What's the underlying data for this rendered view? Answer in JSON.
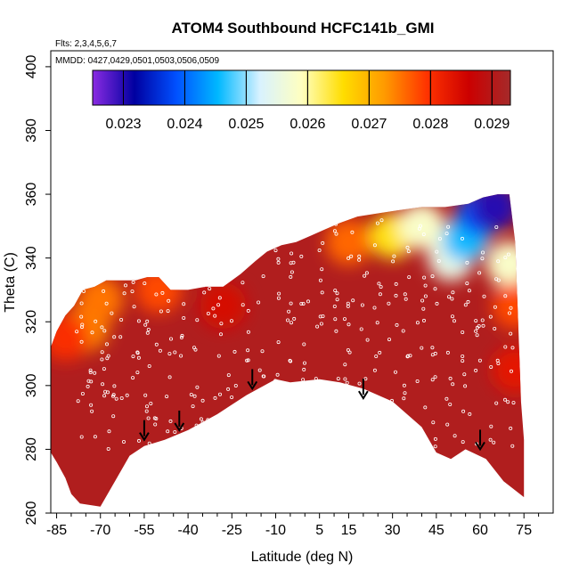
{
  "chart_data": {
    "type": "heatmap",
    "title": "ATOM4 Southbound HCFC141b_GMI",
    "subtitle_lines": [
      "Flts: 2,3,4,5,6,7",
      "MMDD: 0427,0429,0501,0503,0506,0509"
    ],
    "xlabel": "Latitude (deg N)",
    "ylabel": "Theta (C)",
    "xlim": [
      -87,
      85
    ],
    "ylim": [
      260,
      405
    ],
    "x_ticks": [
      -85,
      -70,
      -55,
      -40,
      -25,
      -10,
      5,
      15,
      30,
      45,
      60,
      75
    ],
    "y_ticks": [
      260,
      280,
      300,
      320,
      340,
      360,
      380,
      400
    ],
    "colorbar": {
      "ticks": [
        "0.023",
        "0.024",
        "0.025",
        "0.026",
        "0.027",
        "0.028",
        "0.029"
      ],
      "range": [
        0.0225,
        0.0293
      ],
      "colors": [
        "#8a2be2",
        "#0000a0",
        "#0050ff",
        "#00b8ff",
        "#d8f2ff",
        "#ffffc0",
        "#ffdd00",
        "#ff9900",
        "#ff3300",
        "#cc0000",
        "#a52a2a"
      ]
    },
    "boundary_top": [
      [
        -87,
        312
      ],
      [
        -85,
        317
      ],
      [
        -82,
        322
      ],
      [
        -79,
        325
      ],
      [
        -76,
        330
      ],
      [
        -72,
        331
      ],
      [
        -68,
        333
      ],
      [
        -62,
        333
      ],
      [
        -58,
        333
      ],
      [
        -54,
        334
      ],
      [
        -50,
        334
      ],
      [
        -46,
        330
      ],
      [
        -40,
        330
      ],
      [
        -34,
        331
      ],
      [
        -28,
        331
      ],
      [
        -22,
        335
      ],
      [
        -17,
        339
      ],
      [
        -13,
        342
      ],
      [
        -8,
        344
      ],
      [
        -3,
        345
      ],
      [
        2,
        347
      ],
      [
        7,
        349
      ],
      [
        12,
        351
      ],
      [
        18,
        353
      ],
      [
        25,
        354
      ],
      [
        32,
        355
      ],
      [
        40,
        356
      ],
      [
        48,
        356
      ],
      [
        56,
        357
      ],
      [
        61,
        359
      ],
      [
        66,
        360
      ],
      [
        70,
        360
      ]
    ],
    "boundary_right": [
      [
        70,
        360
      ],
      [
        72,
        345
      ],
      [
        73,
        320
      ],
      [
        74,
        295
      ],
      [
        75,
        283
      ],
      [
        75,
        265
      ]
    ],
    "boundary_bottom": [
      [
        75,
        265
      ],
      [
        68,
        270
      ],
      [
        62,
        277
      ],
      [
        55,
        280
      ],
      [
        50,
        277
      ],
      [
        45,
        279
      ],
      [
        40,
        287
      ],
      [
        30,
        295
      ],
      [
        20,
        299
      ],
      [
        12,
        301
      ],
      [
        5,
        302
      ],
      [
        -5,
        301
      ],
      [
        -10,
        302
      ],
      [
        -20,
        297
      ],
      [
        -30,
        291
      ],
      [
        -40,
        286
      ],
      [
        -48,
        283
      ],
      [
        -55,
        281
      ],
      [
        -60,
        278
      ],
      [
        -65,
        270
      ],
      [
        -70,
        262
      ],
      [
        -77,
        263
      ],
      [
        -80,
        266
      ],
      [
        -82,
        271
      ],
      [
        -85,
        276
      ],
      [
        -87,
        279
      ]
    ],
    "field_anchors": [
      {
        "x": -75,
        "y": 318,
        "v": 0.0274
      },
      {
        "x": -70,
        "y": 327,
        "v": 0.0275
      },
      {
        "x": -82,
        "y": 315,
        "v": 0.028
      },
      {
        "x": -50,
        "y": 330,
        "v": 0.0278
      },
      {
        "x": -28,
        "y": 325,
        "v": 0.0285
      },
      {
        "x": 15,
        "y": 345,
        "v": 0.0276
      },
      {
        "x": 30,
        "y": 347,
        "v": 0.0265
      },
      {
        "x": 40,
        "y": 350,
        "v": 0.0258
      },
      {
        "x": 50,
        "y": 340,
        "v": 0.0255
      },
      {
        "x": 55,
        "y": 346,
        "v": 0.0246
      },
      {
        "x": 60,
        "y": 354,
        "v": 0.0238
      },
      {
        "x": 65,
        "y": 356,
        "v": 0.023
      },
      {
        "x": 70,
        "y": 338,
        "v": 0.0258
      },
      {
        "x": 72,
        "y": 325,
        "v": 0.0278
      },
      {
        "x": 72,
        "y": 305,
        "v": 0.0283
      }
    ],
    "field_base": 0.0291,
    "arrows_x": [
      -55,
      -43,
      -18,
      20,
      60
    ],
    "arrows_y": [
      283,
      286,
      299,
      296,
      280
    ]
  }
}
